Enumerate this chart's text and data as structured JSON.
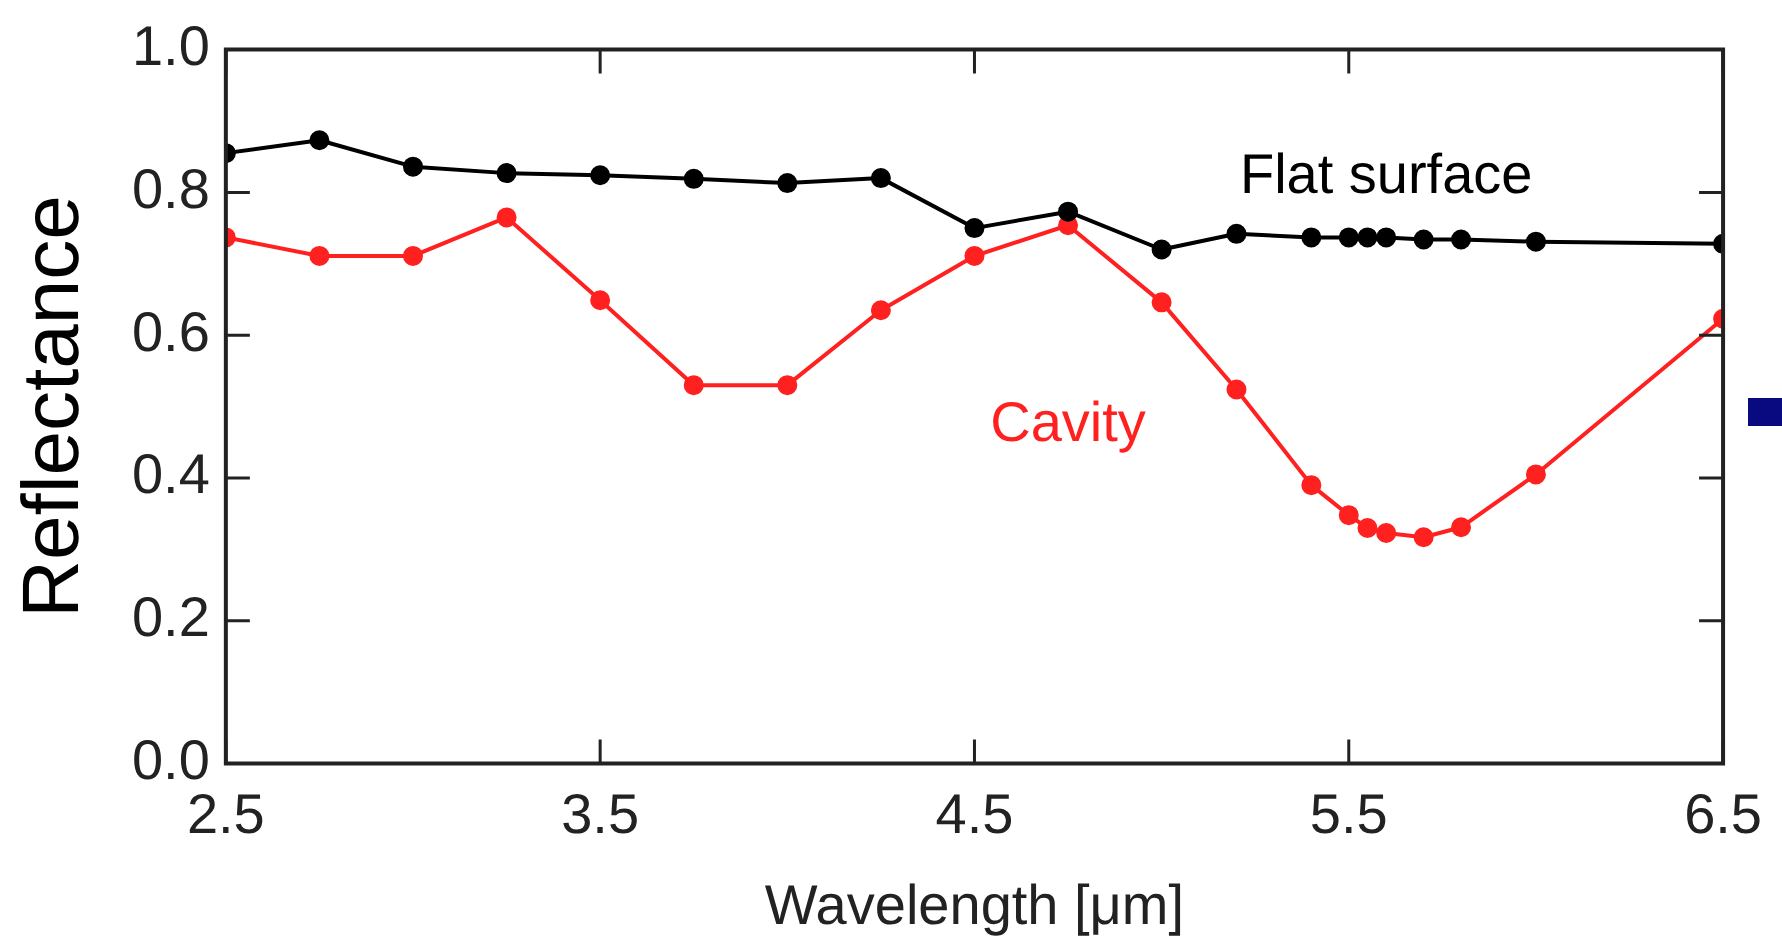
{
  "chart_data": {
    "type": "line",
    "xlabel": "Wavelength [μm]",
    "ylabel": "Reflectance",
    "xlim": [
      2.5,
      6.5
    ],
    "xticks": [
      2.5,
      3.5,
      4.5,
      5.5,
      6.5
    ],
    "ylim": [
      0,
      1
    ],
    "yticks": [
      {
        "value": 0,
        "label": "0.0"
      },
      {
        "value": 0.2,
        "label": "0.2"
      },
      {
        "value": 0.4,
        "label": "0.4"
      },
      {
        "value": 0.6,
        "label": "0.6"
      },
      {
        "value": 0.8,
        "label": "0.8"
      },
      {
        "value": 1,
        "label": "1.0"
      }
    ],
    "grid": false,
    "legend": false,
    "marker": "circle",
    "line_style": "solid",
    "x": [
      2.5,
      2.75,
      3.0,
      3.25,
      3.5,
      3.75,
      4.0,
      4.25,
      4.5,
      4.75,
      5.0,
      5.2,
      5.4,
      5.5,
      5.55,
      5.6,
      5.7,
      5.8,
      6.0,
      6.5
    ],
    "series": [
      {
        "name": "Flat surface",
        "color": "#000000",
        "values": [
          0.855,
          0.873,
          0.836,
          0.827,
          0.824,
          0.819,
          0.813,
          0.82,
          0.75,
          0.773,
          0.72,
          0.742,
          0.737,
          0.737,
          0.737,
          0.737,
          0.734,
          0.734,
          0.731,
          0.728
        ]
      },
      {
        "name": "Cavity",
        "color": "#ff2020",
        "values": [
          0.737,
          0.711,
          0.711,
          0.765,
          0.649,
          0.53,
          0.53,
          0.635,
          0.711,
          0.754,
          0.646,
          0.524,
          0.39,
          0.348,
          0.33,
          0.323,
          0.317,
          0.331,
          0.405,
          0.623
        ]
      }
    ]
  }
}
